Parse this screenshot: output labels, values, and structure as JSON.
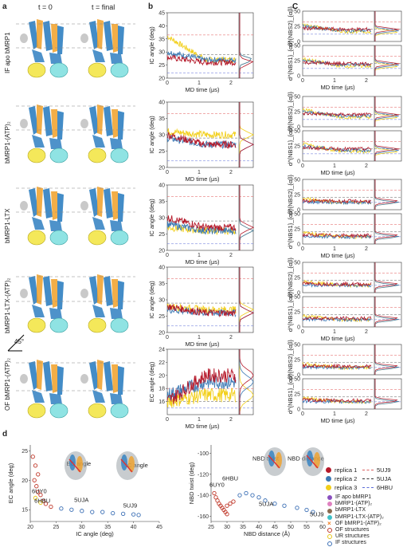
{
  "panels": {
    "a": "a",
    "b": "b",
    "c": "C",
    "d": "d"
  },
  "col_headers": {
    "t0": "t = 0",
    "tfinal": "t = final"
  },
  "row_labels": [
    "IF apo bMRP1",
    "bMRP1-(ATP)₂",
    "bMRP1-LTX",
    "bMRP1-LTX-(ATP)₂",
    "OF bMRP1-(ATP)₂"
  ],
  "rotation_label": "45°",
  "b_axes": {
    "ylabels": [
      "IC angle (deg)",
      "IC angle (deg)",
      "IC angle (deg)",
      "IC angle (deg)",
      "EC angle (deg)"
    ],
    "xlabel": "MD time (μs)",
    "xticks": [
      "0",
      "1",
      "2"
    ]
  },
  "c_axes": {
    "ylabels": [
      "d^{NBS2}_{αβ}",
      "d^{NBS1}_{αβ}"
    ],
    "xlabel": "MD time (μs)",
    "xticks": [
      "0",
      "1",
      "2"
    ],
    "yticks": [
      "0",
      "25",
      "50"
    ]
  },
  "d_left": {
    "xlabel": "IC angle (deg)",
    "ylabel": "EC angle (deg)",
    "xticks": [
      "20",
      "25",
      "30",
      "35",
      "40",
      "45"
    ],
    "yticks": [
      "15",
      "20",
      "25"
    ],
    "annotations": [
      "6UY0",
      "6HBU",
      "5UJA",
      "5UJ9",
      "EC angle",
      "IC angle"
    ]
  },
  "d_right": {
    "xlabel": "NBD distance (Å)",
    "ylabel": "NBD twist (deg)",
    "xticks": [
      "25",
      "30",
      "35",
      "40",
      "45",
      "50",
      "55",
      "60"
    ],
    "yticks": [
      "-100",
      "-120",
      "-140",
      "-160"
    ],
    "annotations": [
      "6UY0",
      "6HBU",
      "5UJA",
      "5UJ9",
      "NBD twist",
      "NBD distance"
    ]
  },
  "legend_replicas": [
    {
      "label": "replica 1",
      "color": "#b5192a"
    },
    {
      "label": "replica 2",
      "color": "#3c7ab5"
    },
    {
      "label": "replica 3",
      "color": "#f2cf1a"
    }
  ],
  "legend_refs": [
    {
      "label": "5UJ9",
      "color": "#d95f5f"
    },
    {
      "label": "5UJA",
      "color": "#333333"
    },
    {
      "label": "6HBU",
      "color": "#5b6bd8"
    }
  ],
  "legend_systems": [
    {
      "label": "IF apo bMRP1",
      "color": "#8a4fbf",
      "kind": "dot"
    },
    {
      "label": "bMRP1-(ATP)₂",
      "color": "#e081c0",
      "kind": "dot"
    },
    {
      "label": "bMRP1-LTX",
      "color": "#8c6a4f",
      "kind": "dot"
    },
    {
      "label": "bMRP1-LTX-(ATP)₂",
      "color": "#3fc1c9",
      "kind": "dot"
    },
    {
      "label": "OF bMRP1-(ATP)₂",
      "color": "#f07a1a",
      "kind": "cross"
    },
    {
      "label": "OF structures",
      "color": "#c0392b",
      "kind": "ring"
    },
    {
      "label": "UR structures",
      "color": "#e6c619",
      "kind": "ring"
    },
    {
      "label": "IF structures",
      "color": "#3b6fb5",
      "kind": "ring"
    }
  ],
  "colors": {
    "rep1": "#b5192a",
    "rep2": "#3c7ab5",
    "rep3": "#f2cf1a",
    "tm_blue": "#2f7fc1",
    "tm_orange": "#f0a028",
    "nbd_yellow": "#f4e85a",
    "nbd_cyan": "#8fe3e3"
  }
}
